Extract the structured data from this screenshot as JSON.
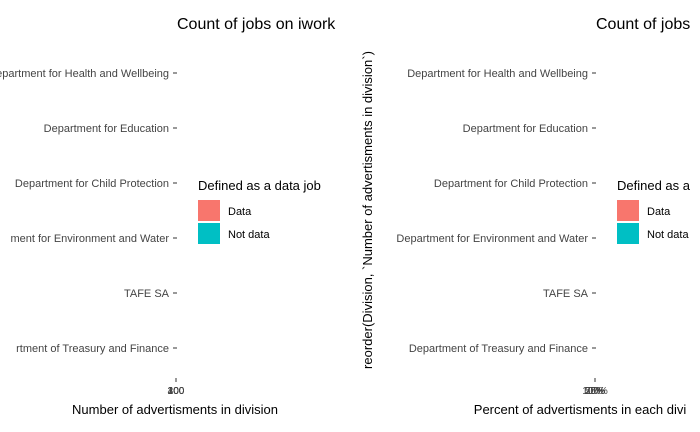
{
  "colors": {
    "data": "#F8766D",
    "not_data": "#00BFC4"
  },
  "chart_data": [
    {
      "type": "bar",
      "orientation": "horizontal",
      "title": "Count of jobs on iwork",
      "categories": [
        "Department for Health and Wellbeing",
        "Department for Education",
        "Department for Child Protection",
        "Department for Environment and Water",
        "TAFE SA",
        "Department of Treasury and Finance"
      ],
      "categories_visible": [
        "epartment for Health and Wellbeing",
        "Department for Education",
        "Department for Child Protection",
        "ment for Environment and Water",
        "TAFE SA",
        "rtment of Treasury and Finance"
      ],
      "xlabel": "Number of advertisments in division",
      "ylabel": "",
      "x_tick_labels": [
        "0",
        "100",
        "200",
        "300",
        "400"
      ],
      "legend": {
        "title": "Defined as a data job",
        "placement": "right",
        "entries": [
          "Data",
          "Not data"
        ]
      },
      "grid": false
    },
    {
      "type": "bar",
      "orientation": "horizontal",
      "title": "Count of jobs",
      "categories": [
        "Department for Health and Wellbeing",
        "Department for Education",
        "Department for Child Protection",
        "Department for Environment and Water",
        "TAFE SA",
        "Department of Treasury and Finance"
      ],
      "xlabel": "Percent of advertisments in each divi",
      "ylabel": "reorder(Division, `Number of advertisments in division`)",
      "x_tick_labels": [
        "0%",
        "25%",
        "50%",
        "75%",
        "100%"
      ],
      "legend": {
        "title": "Defined as a",
        "placement": "right",
        "entries": [
          "Data",
          "Not data"
        ]
      },
      "grid": false
    }
  ]
}
